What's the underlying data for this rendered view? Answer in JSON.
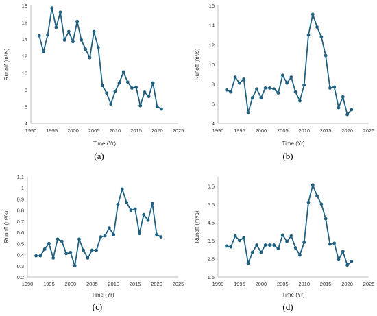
{
  "chart_data": [
    {
      "type": "line",
      "panel_label": "(a)",
      "xlabel": "Time (Yr)",
      "ylabel": "Runoff (m³/s)",
      "xlim": [
        1990,
        2025
      ],
      "ylim": [
        4,
        18
      ],
      "x_ticks": [
        "1990",
        "1995",
        "2000",
        "2005",
        "2010",
        "2015",
        "2020",
        "2025"
      ],
      "y_ticks": [
        "4",
        "6",
        "8",
        "10",
        "12",
        "14",
        "16",
        "18"
      ],
      "grid": false,
      "color": "#1f5f80",
      "x": [
        1992,
        1993,
        1994,
        1995,
        1996,
        1997,
        1998,
        1999,
        2000,
        2001,
        2002,
        2003,
        2004,
        2005,
        2006,
        2007,
        2008,
        2009,
        2010,
        2011,
        2012,
        2013,
        2014,
        2015,
        2016,
        2017,
        2018,
        2019,
        2020,
        2021
      ],
      "y": [
        14.4,
        12.5,
        14.5,
        17.7,
        15.4,
        17.2,
        13.9,
        14.9,
        13.7,
        16.1,
        13.9,
        12.8,
        11.8,
        14.9,
        13.0,
        8.5,
        7.6,
        6.3,
        7.8,
        8.8,
        10.1,
        8.9,
        8.2,
        8.3,
        6.1,
        7.7,
        7.2,
        8.8,
        6.0,
        5.7
      ]
    },
    {
      "type": "line",
      "panel_label": "(b)",
      "xlabel": "Time (Yr)",
      "ylabel": "Runoff (m³/s)",
      "xlim": [
        1990,
        2025
      ],
      "ylim": [
        4,
        16
      ],
      "x_ticks": [
        "1990",
        "1995",
        "2000",
        "2005",
        "2010",
        "2015",
        "2020",
        "2025"
      ],
      "y_ticks": [
        "4",
        "6",
        "8",
        "10",
        "12",
        "14",
        "16"
      ],
      "grid": false,
      "color": "#1f5f80",
      "x": [
        1992,
        1993,
        1994,
        1995,
        1996,
        1997,
        1998,
        1999,
        2000,
        2001,
        2002,
        2003,
        2004,
        2005,
        2006,
        2007,
        2008,
        2009,
        2010,
        2011,
        2012,
        2013,
        2014,
        2015,
        2016,
        2017,
        2018,
        2019,
        2020,
        2021
      ],
      "y": [
        7.4,
        7.2,
        8.7,
        8.1,
        8.5,
        5.1,
        6.6,
        7.5,
        6.6,
        7.6,
        7.6,
        7.5,
        7.1,
        8.9,
        8.1,
        8.7,
        7.2,
        6.3,
        7.9,
        13.0,
        15.1,
        13.8,
        12.8,
        10.9,
        7.6,
        7.7,
        5.6,
        6.7,
        4.9,
        5.4
      ]
    },
    {
      "type": "line",
      "panel_label": "(c)",
      "xlabel": "Time (Yr)",
      "ylabel": "Runoff (m³/s)",
      "xlim": [
        1990,
        2025
      ],
      "ylim": [
        0.2,
        1.1
      ],
      "x_ticks": [
        "1990",
        "1995",
        "2000",
        "2005",
        "2010",
        "2015",
        "2020",
        "2025"
      ],
      "y_ticks": [
        "0.2",
        "0.3",
        "0.4",
        "0.5",
        "0.6",
        "0.7",
        "0.8",
        "0.9",
        "1",
        "1.1"
      ],
      "grid": false,
      "color": "#1f5f80",
      "x": [
        1992,
        1993,
        1994,
        1995,
        1996,
        1997,
        1998,
        1999,
        2000,
        2001,
        2002,
        2003,
        2004,
        2005,
        2006,
        2007,
        2008,
        2009,
        2010,
        2011,
        2012,
        2013,
        2014,
        2015,
        2016,
        2017,
        2018,
        2019,
        2020,
        2021
      ],
      "y": [
        0.39,
        0.39,
        0.45,
        0.5,
        0.37,
        0.54,
        0.52,
        0.41,
        0.42,
        0.3,
        0.54,
        0.44,
        0.37,
        0.44,
        0.44,
        0.56,
        0.57,
        0.64,
        0.58,
        0.85,
        0.99,
        0.87,
        0.8,
        0.81,
        0.59,
        0.76,
        0.71,
        0.86,
        0.58,
        0.56
      ]
    },
    {
      "type": "line",
      "panel_label": "(d)",
      "xlabel": "Time (Yr)",
      "ylabel": "Runoff (m³/s)",
      "xlim": [
        1990,
        2025
      ],
      "ylim": [
        1.5,
        7
      ],
      "x_ticks": [
        "1990",
        "1995",
        "2000",
        "2005",
        "2010",
        "2015",
        "2020",
        "2025"
      ],
      "y_ticks": [
        "1.5",
        "2.5",
        "3.5",
        "4.5",
        "5.5",
        "6.5"
      ],
      "y_tick_values": [
        1.5,
        2.5,
        3.5,
        4.5,
        5.5,
        6.5
      ],
      "grid": false,
      "color": "#1f5f80",
      "x": [
        1992,
        1993,
        1994,
        1995,
        1996,
        1997,
        1998,
        1999,
        2000,
        2001,
        2002,
        2003,
        2004,
        2005,
        2006,
        2007,
        2008,
        2009,
        2010,
        2011,
        2012,
        2013,
        2014,
        2015,
        2016,
        2017,
        2018,
        2019,
        2020,
        2021
      ],
      "y": [
        3.2,
        3.15,
        3.75,
        3.5,
        3.65,
        2.25,
        2.85,
        3.25,
        2.85,
        3.25,
        3.25,
        3.25,
        3.05,
        3.8,
        3.45,
        3.75,
        3.1,
        2.7,
        3.4,
        5.6,
        6.55,
        5.95,
        5.5,
        4.7,
        3.3,
        3.35,
        2.45,
        2.9,
        2.15,
        2.35
      ]
    }
  ]
}
